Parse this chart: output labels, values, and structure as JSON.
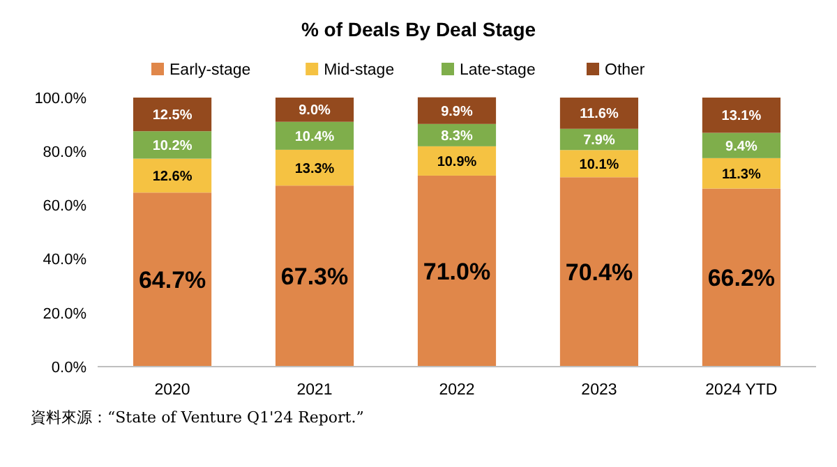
{
  "chart_data": {
    "type": "bar",
    "stacked": true,
    "title": "% of Deals By Deal Stage",
    "categories": [
      "2020",
      "2021",
      "2022",
      "2023",
      "2024 YTD"
    ],
    "series": [
      {
        "name": "Early-stage",
        "color": "#e0874a",
        "values": [
          64.7,
          67.3,
          71.0,
          70.4,
          66.2
        ],
        "value_labels": [
          "64.7%",
          "67.3%",
          "71.0%",
          "70.4%",
          "66.2%"
        ]
      },
      {
        "name": "Mid-stage",
        "color": "#f5c242",
        "values": [
          12.6,
          13.3,
          10.9,
          10.1,
          11.3
        ],
        "value_labels": [
          "12.6%",
          "13.3%",
          "10.9%",
          "10.1%",
          "11.3%"
        ]
      },
      {
        "name": "Late-stage",
        "color": "#7fae4b",
        "values": [
          10.2,
          10.4,
          8.3,
          7.9,
          9.4
        ],
        "value_labels": [
          "10.2%",
          "10.4%",
          "8.3%",
          "7.9%",
          "9.4%"
        ]
      },
      {
        "name": "Other",
        "color": "#944a1e",
        "values": [
          12.5,
          9.0,
          9.9,
          11.6,
          13.1
        ],
        "value_labels": [
          "12.5%",
          "9.0%",
          "9.9%",
          "11.6%",
          "13.1%"
        ]
      }
    ],
    "ylim": [
      0,
      100
    ],
    "yticks": [
      {
        "value": 0,
        "label": "0.0%"
      },
      {
        "value": 20,
        "label": "20.0%"
      },
      {
        "value": 40,
        "label": "40.0%"
      },
      {
        "value": 60,
        "label": "60.0%"
      },
      {
        "value": 80,
        "label": "80.0%"
      },
      {
        "value": 100,
        "label": "100.0%"
      }
    ],
    "legend": "top",
    "grid": false,
    "annotations": [
      "資料來源：“State of Venture Q1'24 Report.”"
    ]
  }
}
